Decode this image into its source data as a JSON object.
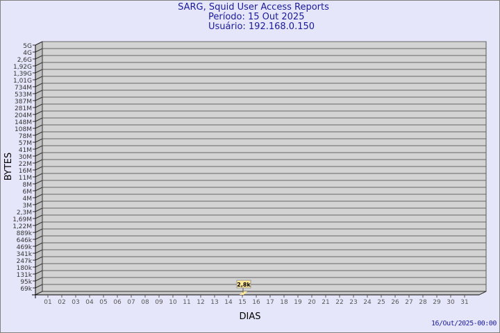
{
  "chart_data": {
    "type": "bar",
    "title": "SARG, Squid User Access Reports",
    "subtitle": [
      "Período: 15 Out 2025",
      "Usuário: 192.168.0.150"
    ],
    "xlabel": "DIAS",
    "ylabel": "BYTES",
    "y_scale": "log",
    "y_ticks": [
      "5G",
      "4G",
      "2,6G",
      "1,92G",
      "1,39G",
      "1,01G",
      "734M",
      "533M",
      "387M",
      "281M",
      "204M",
      "148M",
      "108M",
      "78M",
      "57M",
      "41M",
      "30M",
      "22M",
      "16M",
      "11M",
      "8M",
      "6M",
      "4M",
      "3M",
      "2,3M",
      "1,69M",
      "1,22M",
      "889k",
      "646k",
      "469k",
      "341k",
      "247k",
      "180k",
      "131k",
      "95k",
      "69k"
    ],
    "categories": [
      "01",
      "02",
      "03",
      "04",
      "05",
      "06",
      "07",
      "08",
      "09",
      "10",
      "11",
      "12",
      "13",
      "14",
      "15",
      "16",
      "17",
      "18",
      "19",
      "20",
      "21",
      "22",
      "23",
      "24",
      "25",
      "26",
      "27",
      "28",
      "29",
      "30",
      "31"
    ],
    "series": [
      {
        "points": [
          {
            "x": "15",
            "value": 2800,
            "label": "2,8k"
          }
        ]
      }
    ],
    "grid": true,
    "colors": {
      "wall": "#d3d3d3",
      "bar": "#ffe999",
      "label_bg": "#ffe999",
      "title": "#1a1a9a"
    }
  },
  "footer": {
    "timestamp": "16/Out/2025-00:00"
  }
}
